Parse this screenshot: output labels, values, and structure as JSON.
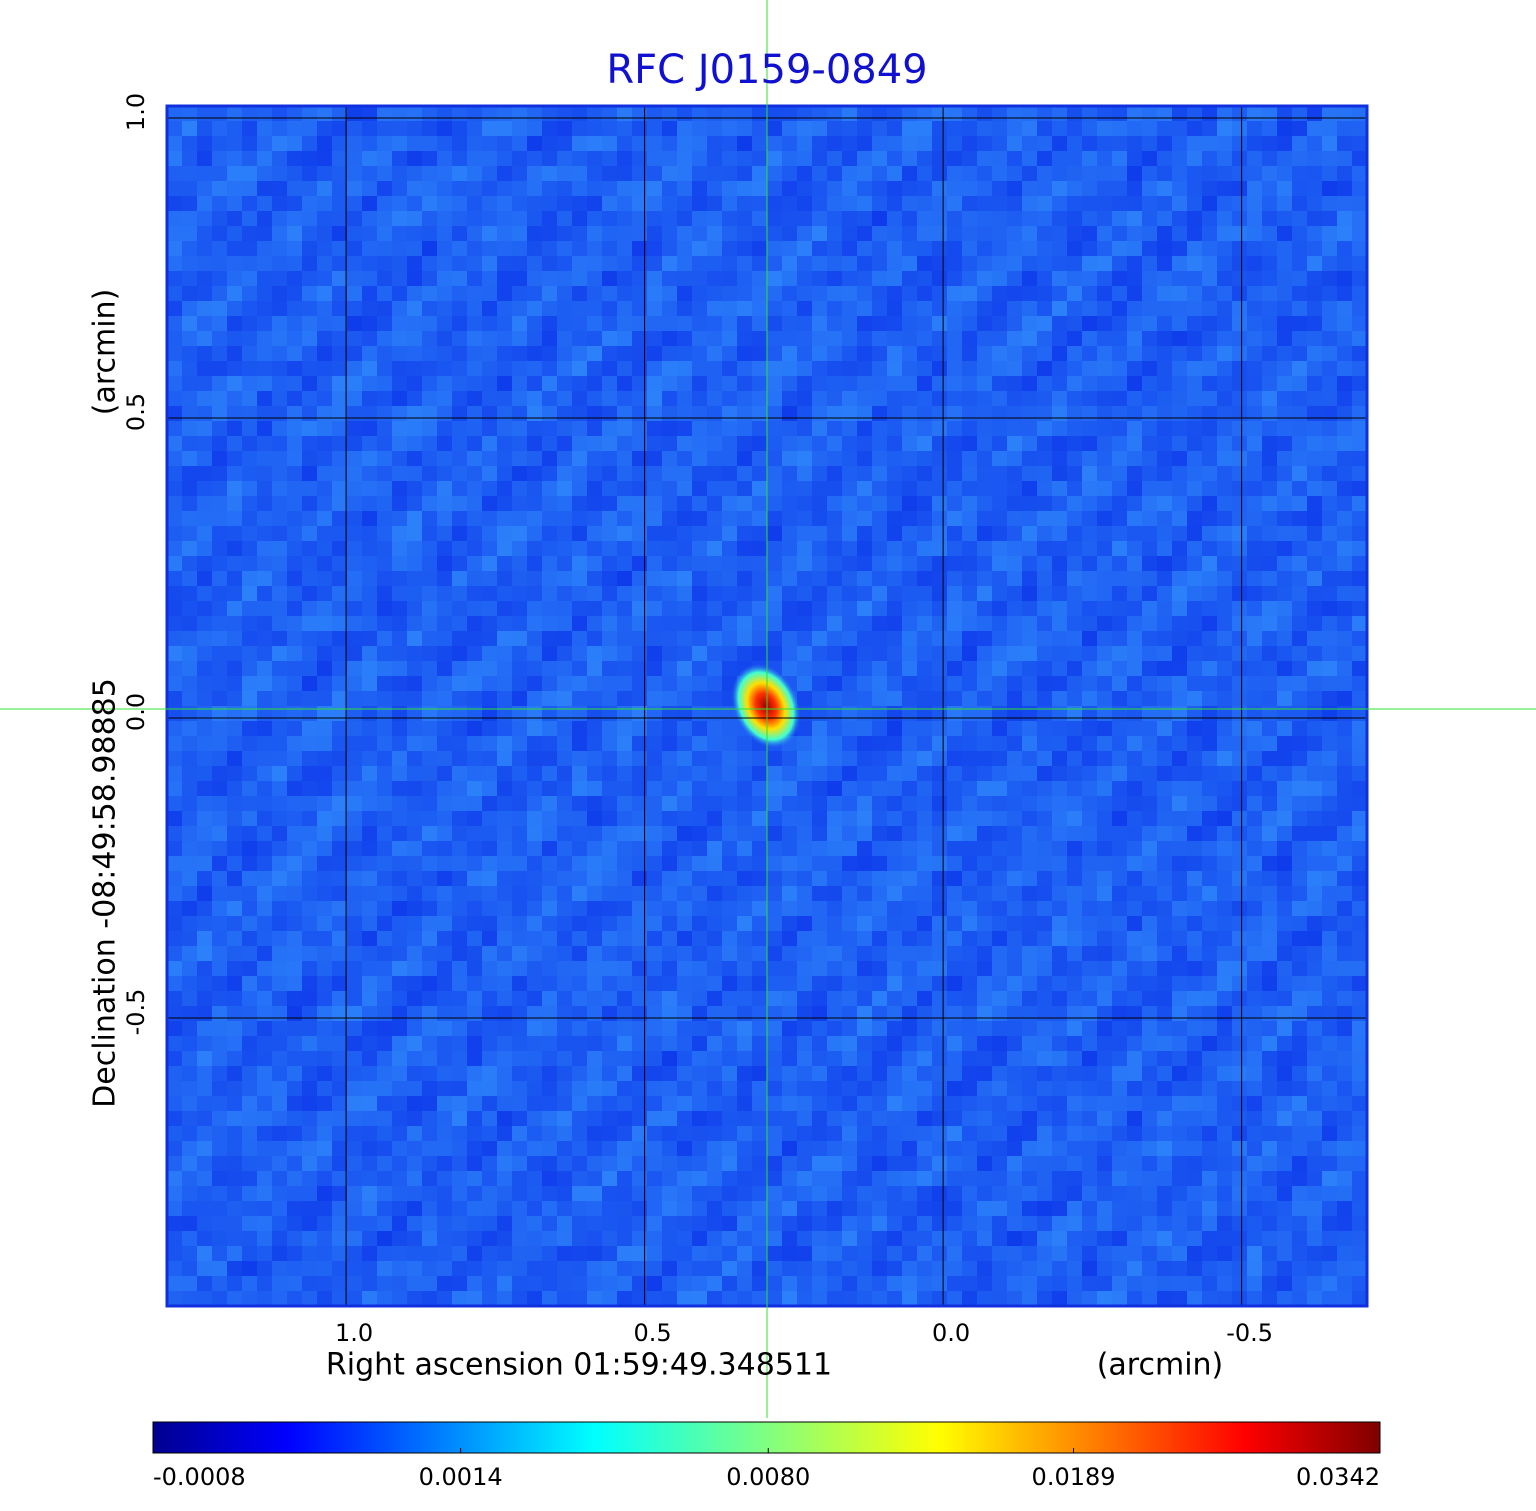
{
  "chart_data": {
    "type": "heatmap",
    "title": "RFC J0159-0849",
    "x_label": "Right ascension  01:59:49.348511",
    "x_unit": "(arcmin)",
    "y_label": "Declination  -08:49:58.98885",
    "y_unit": "(arcmin)",
    "xlim": [
      1.3,
      -0.71
    ],
    "ylim": [
      -0.98,
      1.02
    ],
    "xticks": [
      {
        "value": 1,
        "label": "1.0"
      },
      0.5,
      {
        "value": 0,
        "label": "0.0"
      },
      -0.5
    ],
    "yticks": [
      {
        "value": 1,
        "label": "1.0"
      },
      0.5,
      {
        "value": 0,
        "label": "0.0"
      },
      -0.5
    ],
    "grid": true,
    "colorbar": {
      "lim": [
        -0.0008,
        0.0342
      ],
      "scale": "sqrt",
      "ticks": [
        -0.0008,
        0.0014,
        {
          "value": 0.008,
          "label": "0.0080"
        },
        0.0189,
        0.0342
      ]
    }
  }
}
